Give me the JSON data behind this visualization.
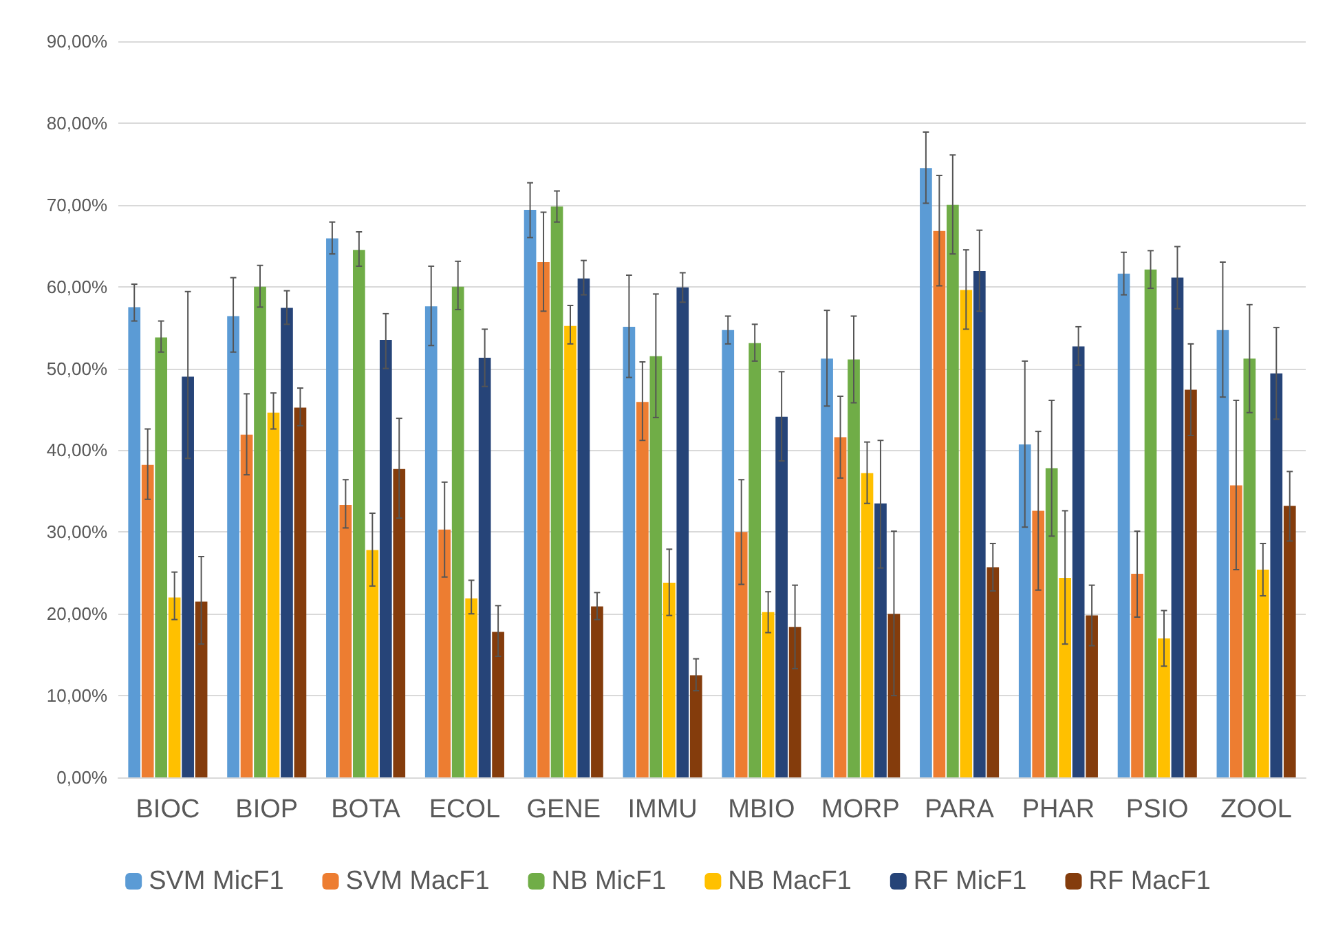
{
  "chart_data": {
    "type": "bar",
    "categories": [
      "BIOC",
      "BIOP",
      "BOTA",
      "ECOL",
      "GENE",
      "IMMU",
      "MBIO",
      "MORP",
      "PARA",
      "PHAR",
      "PSIO",
      "ZOOL"
    ],
    "ylim": [
      0,
      90
    ],
    "yticks": [
      {
        "value": 0,
        "label": "0,00%"
      },
      {
        "value": 10,
        "label": "10,00%"
      },
      {
        "value": 20,
        "label": "20,00%"
      },
      {
        "value": 30,
        "label": "30,00%"
      },
      {
        "value": 40,
        "label": "40,00%"
      },
      {
        "value": 50,
        "label": "50,00%"
      },
      {
        "value": 60,
        "label": "60,00%"
      },
      {
        "value": 70,
        "label": "70,00%"
      },
      {
        "value": 80,
        "label": "80,00%"
      },
      {
        "value": 90,
        "label": "90,00%"
      }
    ],
    "grid": "y",
    "legend": "bottom",
    "series": [
      {
        "name": "SVM MicF1",
        "color": "#5b9bd5",
        "values": [
          57.5,
          56.4,
          65.9,
          57.6,
          69.4,
          55.1,
          54.7,
          51.2,
          74.5,
          40.7,
          61.6,
          54.7
        ],
        "errors": [
          [
            55.8,
            60.3
          ],
          [
            52,
            61.1
          ],
          [
            64,
            67.9
          ],
          [
            52.8,
            62.5
          ],
          [
            66,
            72.7
          ],
          [
            48.9,
            61.4
          ],
          [
            53,
            56.4
          ],
          [
            45.4,
            57.1
          ],
          [
            70.2,
            78.9
          ],
          [
            30.6,
            50.9
          ],
          [
            59,
            64.2
          ],
          [
            46.5,
            63
          ]
        ]
      },
      {
        "name": "SVM MacF1",
        "color": "#ed7d31",
        "values": [
          38.2,
          41.9,
          33.3,
          30.3,
          63,
          45.9,
          30,
          41.6,
          66.8,
          32.6,
          24.9,
          35.7
        ],
        "errors": [
          [
            34,
            42.6
          ],
          [
            37,
            46.9
          ],
          [
            30.5,
            36.4
          ],
          [
            24.5,
            36.1
          ],
          [
            57,
            69.1
          ],
          [
            41.2,
            50.8
          ],
          [
            23.6,
            36.4
          ],
          [
            36.6,
            46.6
          ],
          [
            60.1,
            73.6
          ],
          [
            22.9,
            42.3
          ],
          [
            19.6,
            30.1
          ],
          [
            25.4,
            46.1
          ]
        ]
      },
      {
        "name": "NB MicF1",
        "color": "#70ad47",
        "values": [
          53.8,
          60,
          64.5,
          60,
          69.8,
          51.5,
          53.1,
          51.1,
          70,
          37.8,
          62.1,
          51.2
        ],
        "errors": [
          [
            52,
            55.8
          ],
          [
            57.5,
            62.6
          ],
          [
            62.5,
            66.7
          ],
          [
            57.2,
            63.1
          ],
          [
            67.9,
            71.7
          ],
          [
            44,
            59.1
          ],
          [
            50.9,
            55.4
          ],
          [
            45.8,
            56.4
          ],
          [
            64,
            76.1
          ],
          [
            29.5,
            46.1
          ],
          [
            59.8,
            64.4
          ],
          [
            44.6,
            57.8
          ]
        ]
      },
      {
        "name": "NB MacF1",
        "color": "#ffc000",
        "values": [
          22,
          44.6,
          27.8,
          21.9,
          55.2,
          23.8,
          20.2,
          37.2,
          59.6,
          24.4,
          17,
          25.4
        ],
        "errors": [
          [
            19.3,
            25.1
          ],
          [
            42.6,
            47
          ],
          [
            23.4,
            32.3
          ],
          [
            20,
            24.1
          ],
          [
            53,
            57.7
          ],
          [
            19.8,
            27.9
          ],
          [
            17.7,
            22.7
          ],
          [
            33.5,
            41
          ],
          [
            54.8,
            64.5
          ],
          [
            16.3,
            32.6
          ],
          [
            13.6,
            20.4
          ],
          [
            22.2,
            28.6
          ]
        ]
      },
      {
        "name": "RF MicF1",
        "color": "#264478",
        "values": [
          49,
          57.4,
          53.5,
          51.3,
          61,
          59.9,
          44.1,
          33.5,
          61.9,
          52.7,
          61.1,
          49.4
        ],
        "errors": [
          [
            39,
            59.4
          ],
          [
            55.4,
            59.5
          ],
          [
            50,
            56.7
          ],
          [
            47.8,
            54.8
          ],
          [
            59,
            63.2
          ],
          [
            58.1,
            61.7
          ],
          [
            38.7,
            49.6
          ],
          [
            25.6,
            41.2
          ],
          [
            57,
            66.9
          ],
          [
            50.4,
            55.1
          ],
          [
            57.3,
            64.9
          ],
          [
            43.8,
            55
          ]
        ]
      },
      {
        "name": "RF MacF1",
        "color": "#843c0c",
        "values": [
          21.5,
          45.2,
          37.7,
          17.8,
          20.9,
          12.5,
          18.4,
          20,
          25.7,
          19.8,
          47.4,
          33.2
        ],
        "errors": [
          [
            16.3,
            27
          ],
          [
            43,
            47.6
          ],
          [
            31.7,
            43.9
          ],
          [
            14.8,
            21
          ],
          [
            19.3,
            22.6
          ],
          [
            10.6,
            14.5
          ],
          [
            13.3,
            23.5
          ],
          [
            10,
            30.1
          ],
          [
            22.8,
            28.6
          ],
          [
            16.1,
            23.5
          ],
          [
            41.8,
            53
          ],
          [
            28.9,
            37.4
          ]
        ]
      }
    ]
  }
}
